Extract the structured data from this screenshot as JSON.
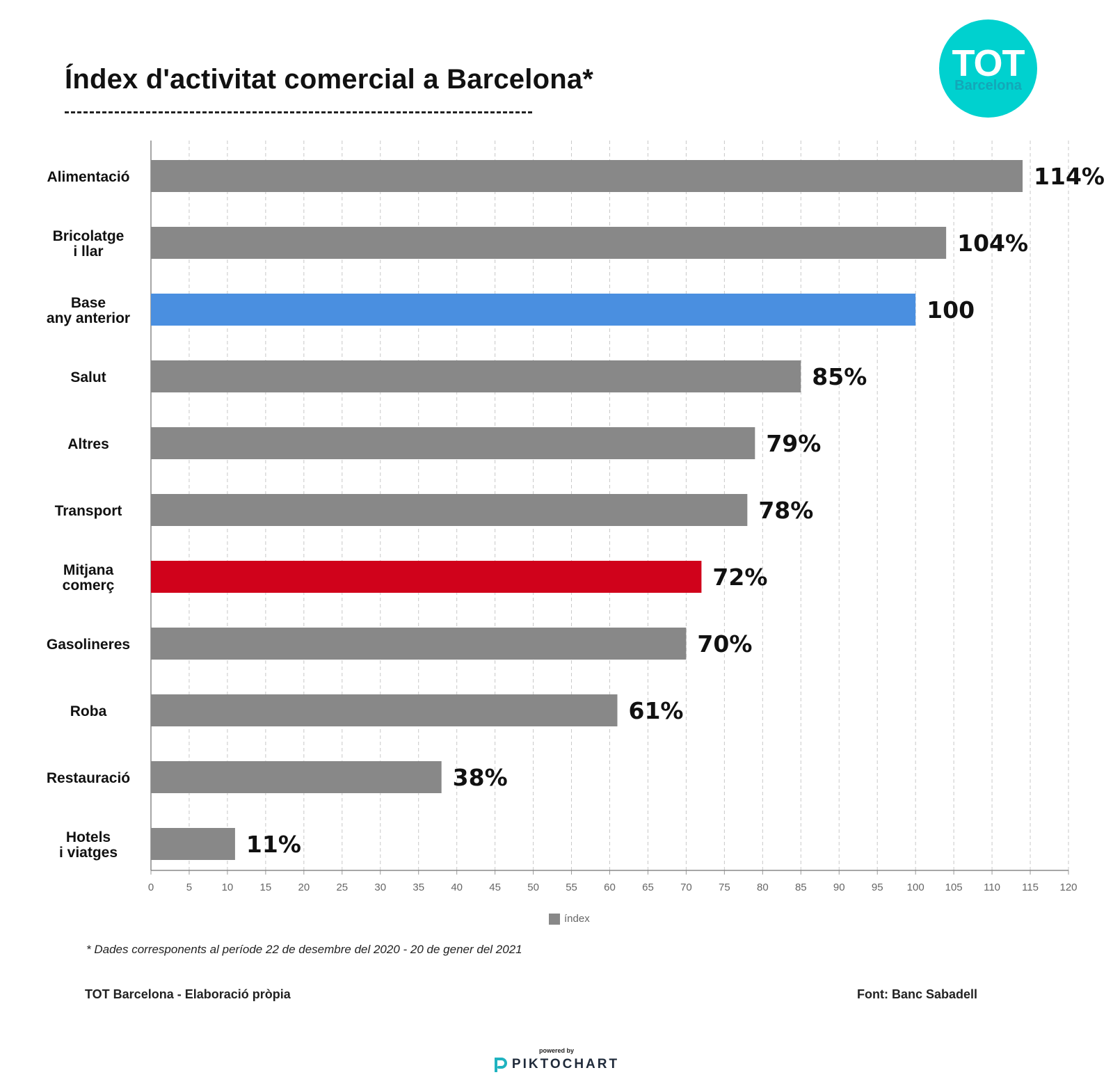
{
  "header": {
    "title": "Índex d'activitat comercial a Barcelona*",
    "logo_main": "TOT",
    "logo_sub": "Barcelona",
    "logo_color": "#00d1cf"
  },
  "chart_data": {
    "type": "bar",
    "orientation": "horizontal",
    "title": "Índex d'activitat comercial a Barcelona*",
    "categories": [
      "Alimentació",
      "Bricolatge\ni llar",
      "Base\nany anterior",
      "Salut",
      "Altres",
      "Transport",
      "Mitjana\ncomerç",
      "Gasolineres",
      "Roba",
      "Restauració",
      "Hotels\ni viatges"
    ],
    "values": [
      114,
      104,
      100,
      85,
      79,
      78,
      72,
      70,
      61,
      38,
      11
    ],
    "value_labels": [
      "114%",
      "104%",
      "100",
      "85%",
      "79%",
      "78%",
      "72%",
      "70%",
      "61%",
      "38%",
      "11%"
    ],
    "colors": [
      "#888888",
      "#888888",
      "#4a8fe0",
      "#888888",
      "#888888",
      "#888888",
      "#d0021b",
      "#888888",
      "#888888",
      "#888888",
      "#888888"
    ],
    "series": [
      {
        "name": "índex",
        "color": "#888888"
      }
    ],
    "xlim": [
      0,
      120
    ],
    "x_ticks": [
      0,
      5,
      10,
      15,
      20,
      25,
      30,
      35,
      40,
      45,
      50,
      55,
      60,
      65,
      70,
      75,
      80,
      85,
      90,
      95,
      100,
      105,
      110,
      115,
      120
    ],
    "grid": true,
    "legend_position": "bottom-center"
  },
  "legend": {
    "label": "índex"
  },
  "footer": {
    "note": "* Dades corresponents al període 22 de desembre del 2020 - 20 de gener del 2021",
    "credit": "TOT Barcelona - Elaboració pròpia",
    "source": "Font: Banc Sabadell",
    "powered_by": "powered by",
    "brand": "PIKTOCHART"
  }
}
